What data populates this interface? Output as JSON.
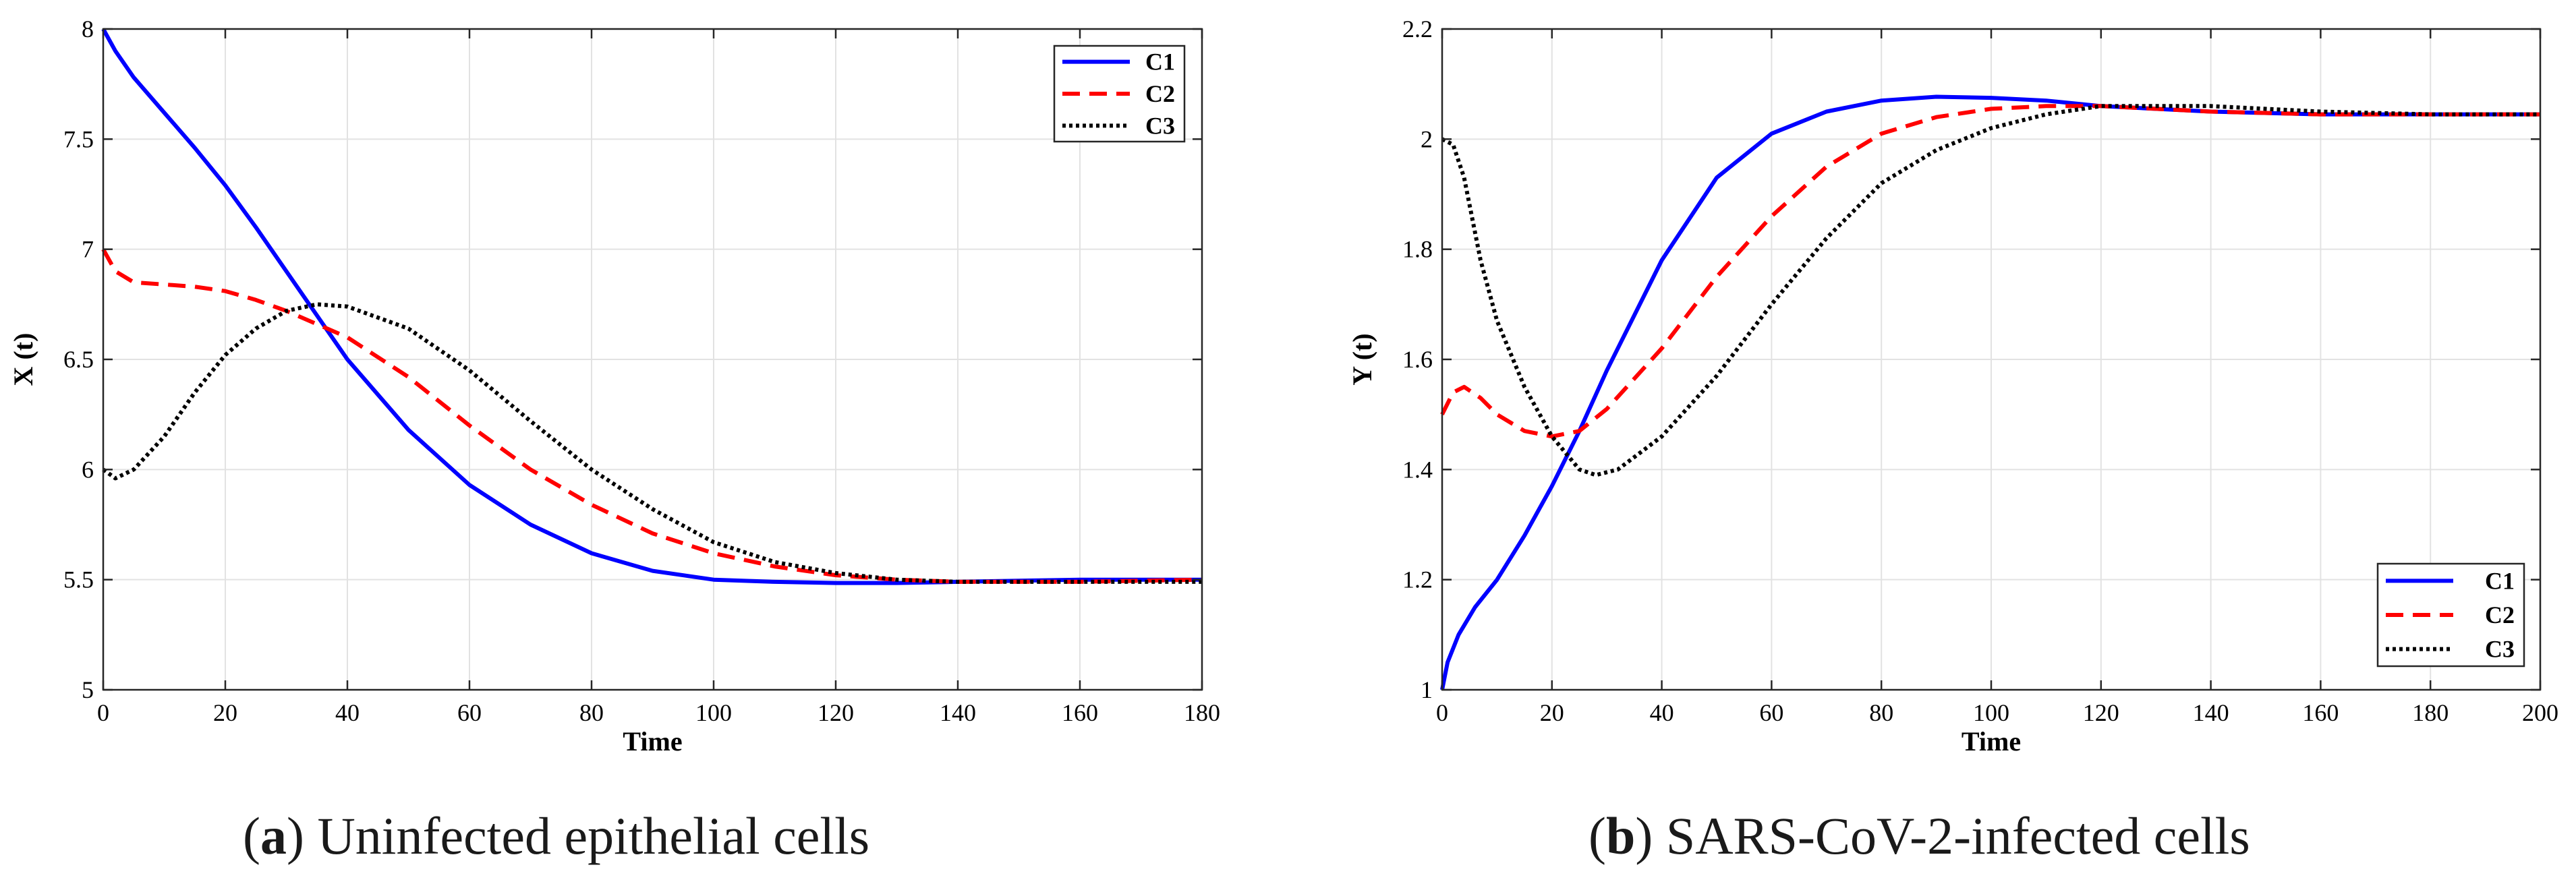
{
  "chart_data": [
    {
      "type": "line",
      "xlabel": "Time",
      "ylabel": "X (t)",
      "xlim": [
        0,
        180
      ],
      "ylim": [
        5,
        8
      ],
      "xticks": [
        0,
        20,
        40,
        60,
        80,
        100,
        120,
        140,
        160,
        180
      ],
      "yticks": [
        5,
        5.5,
        6,
        6.5,
        7,
        7.5,
        8
      ],
      "ytick_labels": [
        "5",
        "5.5",
        "6",
        "6.5",
        "7",
        "7.5",
        "8"
      ],
      "grid": true,
      "legend_position": "top-right",
      "caption": {
        "letter": "a",
        "text": "Uninfected epithelial cells"
      },
      "series": [
        {
          "name": "C1",
          "color": "#0000ff",
          "style": "solid",
          "x": [
            0,
            2,
            5,
            10,
            15,
            20,
            25,
            30,
            35,
            40,
            50,
            60,
            70,
            80,
            90,
            100,
            110,
            120,
            130,
            140,
            150,
            160,
            170,
            180
          ],
          "y": [
            8.0,
            7.9,
            7.78,
            7.62,
            7.46,
            7.29,
            7.1,
            6.9,
            6.7,
            6.5,
            6.18,
            5.93,
            5.75,
            5.62,
            5.54,
            5.5,
            5.49,
            5.485,
            5.485,
            5.49,
            5.495,
            5.5,
            5.5,
            5.5
          ]
        },
        {
          "name": "C2",
          "color": "#ff0000",
          "style": "dashed",
          "x": [
            0,
            2,
            5,
            10,
            15,
            20,
            25,
            30,
            35,
            40,
            50,
            60,
            70,
            80,
            90,
            100,
            110,
            120,
            130,
            140,
            150,
            160,
            170,
            180
          ],
          "y": [
            7.0,
            6.9,
            6.85,
            6.84,
            6.83,
            6.81,
            6.77,
            6.72,
            6.66,
            6.6,
            6.42,
            6.2,
            6.0,
            5.84,
            5.71,
            5.62,
            5.56,
            5.52,
            5.5,
            5.49,
            5.49,
            5.49,
            5.495,
            5.5
          ]
        },
        {
          "name": "C3",
          "color": "#000000",
          "style": "dotted",
          "x": [
            0,
            2,
            5,
            10,
            15,
            20,
            25,
            30,
            35,
            40,
            50,
            60,
            70,
            80,
            90,
            100,
            110,
            120,
            130,
            140,
            150,
            160,
            170,
            180
          ],
          "y": [
            6.0,
            5.96,
            6.0,
            6.15,
            6.35,
            6.52,
            6.64,
            6.72,
            6.75,
            6.74,
            6.64,
            6.45,
            6.22,
            6.0,
            5.82,
            5.67,
            5.58,
            5.53,
            5.5,
            5.49,
            5.49,
            5.49,
            5.49,
            5.49
          ]
        }
      ]
    },
    {
      "type": "line",
      "xlabel": "Time",
      "ylabel": "Y (t)",
      "xlim": [
        0,
        200
      ],
      "ylim": [
        1,
        2.2
      ],
      "xticks": [
        0,
        20,
        40,
        60,
        80,
        100,
        120,
        140,
        160,
        180,
        200
      ],
      "yticks": [
        1,
        1.2,
        1.4,
        1.6,
        1.8,
        2,
        2.2
      ],
      "ytick_labels": [
        "1",
        "1.2",
        "1.4",
        "1.6",
        "1.8",
        "2",
        "2.2"
      ],
      "grid": true,
      "legend_position": "bottom-right",
      "caption": {
        "letter": "b",
        "text": "SARS-CoV-2-infected cells"
      },
      "series": [
        {
          "name": "C1",
          "color": "#0000ff",
          "style": "solid",
          "x": [
            0,
            1,
            3,
            6,
            10,
            15,
            20,
            25,
            30,
            40,
            50,
            60,
            70,
            80,
            90,
            100,
            110,
            120,
            140,
            160,
            180,
            200
          ],
          "y": [
            1.0,
            1.05,
            1.1,
            1.15,
            1.2,
            1.28,
            1.37,
            1.47,
            1.58,
            1.78,
            1.93,
            2.01,
            2.05,
            2.07,
            2.077,
            2.075,
            2.07,
            2.06,
            2.05,
            2.045,
            2.045,
            2.045
          ]
        },
        {
          "name": "C2",
          "color": "#ff0000",
          "style": "dashed",
          "x": [
            0,
            2,
            4,
            7,
            10,
            15,
            20,
            25,
            30,
            40,
            50,
            60,
            70,
            80,
            90,
            100,
            110,
            120,
            140,
            160,
            180,
            200
          ],
          "y": [
            1.5,
            1.54,
            1.55,
            1.53,
            1.5,
            1.47,
            1.46,
            1.47,
            1.51,
            1.62,
            1.75,
            1.86,
            1.95,
            2.01,
            2.04,
            2.055,
            2.06,
            2.06,
            2.05,
            2.045,
            2.045,
            2.045
          ]
        },
        {
          "name": "C3",
          "color": "#000000",
          "style": "dotted",
          "x": [
            0,
            2,
            4,
            7,
            10,
            15,
            20,
            25,
            28,
            32,
            40,
            50,
            60,
            70,
            80,
            90,
            100,
            110,
            120,
            140,
            160,
            180,
            200
          ],
          "y": [
            2.0,
            1.99,
            1.93,
            1.78,
            1.67,
            1.55,
            1.46,
            1.4,
            1.39,
            1.4,
            1.46,
            1.57,
            1.7,
            1.82,
            1.92,
            1.98,
            2.02,
            2.045,
            2.06,
            2.06,
            2.05,
            2.045,
            2.045
          ]
        }
      ]
    }
  ]
}
